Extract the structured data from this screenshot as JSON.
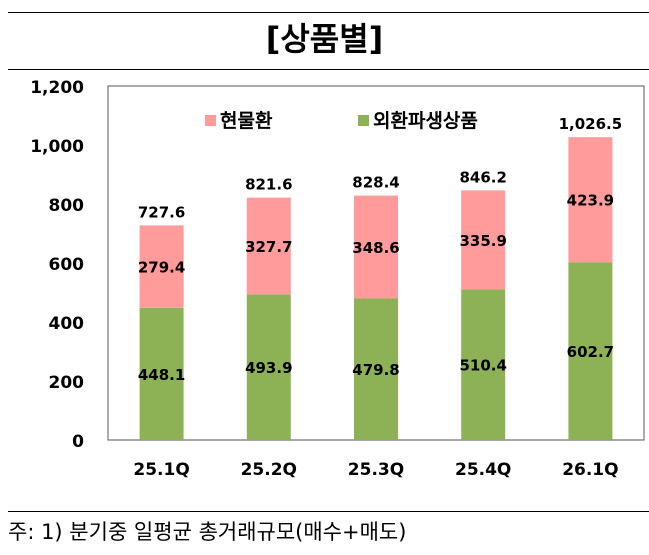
{
  "chart_data": {
    "type": "bar",
    "stacked": true,
    "title": "[상품별]",
    "categories": [
      "25.1Q",
      "25.2Q",
      "25.3Q",
      "25.4Q",
      "26.1Q"
    ],
    "series": [
      {
        "name": "외환파생상품",
        "values": [
          448.1,
          493.9,
          479.8,
          510.4,
          602.7
        ],
        "color": "#8DB255"
      },
      {
        "name": "현물환",
        "values": [
          279.4,
          327.7,
          348.6,
          335.9,
          423.9
        ],
        "color": "#FF9B9B"
      }
    ],
    "totals": [
      "727.6",
      "821.6",
      "828.4",
      "846.2",
      "1,026.5"
    ],
    "value_labels": [
      [
        "448.1",
        "493.9",
        "479.8",
        "510.4",
        "602.7"
      ],
      [
        "279.4",
        "327.7",
        "348.6",
        "335.9",
        "423.9"
      ]
    ],
    "ylim": [
      0,
      1200
    ],
    "yticks": [
      0,
      200,
      400,
      600,
      800,
      1000,
      1200
    ],
    "ytick_labels": [
      "0",
      "200",
      "400",
      "600",
      "800",
      "1,000",
      "1,200"
    ],
    "legend_position": "top",
    "legend": [
      "현물환",
      "외환파생상품"
    ],
    "xlabel": "",
    "ylabel": ""
  },
  "footnote": "주: 1) 분기중 일평균 총거래규모(매수+매도)"
}
